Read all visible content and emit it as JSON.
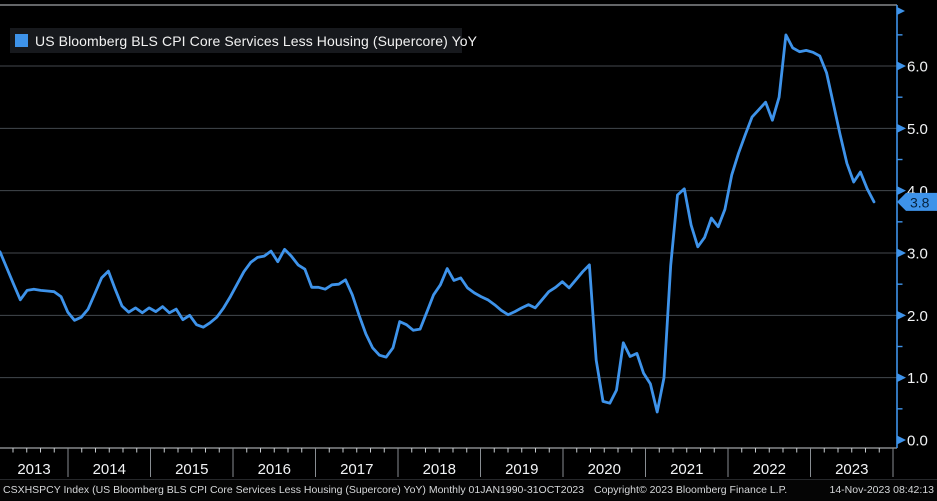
{
  "colors": {
    "background": "#000000",
    "line": "#3e93ea",
    "axis": "#3e93ea",
    "grid": "#43484e",
    "frame": "#c9cdd1",
    "separator": "#888d92",
    "tick_label": "#f2f4f6",
    "tag_bg": "#3e93ea",
    "tag_text": "#06233f",
    "legend_bg": "#17191d",
    "legend_text": "#f2f2f2",
    "footer_text": "#d6d8da"
  },
  "legend": {
    "swatch_color": "#3e93ea",
    "label": "US Bloomberg BLS CPI Core Services Less Housing (Supercore) YoY"
  },
  "y_axis": {
    "tick_labels": [
      "6.0",
      "5.0",
      "4.0",
      "3.0",
      "2.0",
      "1.0",
      "0.0"
    ],
    "minor_tick_values": [
      0.5,
      1.5,
      2.5,
      3.5,
      4.5,
      5.5,
      6.5
    ],
    "last_value_tag": "3.8"
  },
  "x_axis": {
    "year_labels": [
      "2013",
      "2014",
      "2015",
      "2016",
      "2017",
      "2018",
      "2019",
      "2020",
      "2021",
      "2022",
      "2023"
    ]
  },
  "footer": {
    "left": "CSXHSPCY Index (US Bloomberg BLS CPI Core Services Less Housing (Supercore) YoY)  Monthly 01JAN1990-31OCT2023",
    "center": "Copyright© 2023 Bloomberg Finance L.P.",
    "right": "14-Nov-2023 08:42:13"
  },
  "chart_data": {
    "type": "line",
    "title": "US Bloomberg BLS CPI Core Services Less Housing (Supercore) YoY",
    "legend_entries": [
      "US Bloomberg BLS CPI Core Services Less Housing (Supercore) YoY"
    ],
    "frequency": "monthly",
    "first_point": "2013-01",
    "last_point": "2023-10",
    "categories": [
      "2013",
      "2014",
      "2015",
      "2016",
      "2017",
      "2018",
      "2019",
      "2020",
      "2021",
      "2022",
      "2023"
    ],
    "ylim": [
      0,
      6.6
    ],
    "yticks": [
      0,
      1,
      2,
      3,
      4,
      5,
      6
    ],
    "grid": "horizontal",
    "legend_position": "top-left",
    "axis_side": "right",
    "last_value": 3.8,
    "series": [
      {
        "name": "US Bloomberg BLS CPI Core Services Less Housing (Supercore) YoY",
        "color": "#3e93ea",
        "values": [
          3.02,
          2.76,
          2.5,
          2.25,
          2.4,
          2.42,
          2.4,
          2.39,
          2.38,
          2.3,
          2.05,
          1.92,
          1.97,
          2.1,
          2.35,
          2.6,
          2.71,
          2.42,
          2.15,
          2.05,
          2.12,
          2.04,
          2.12,
          2.06,
          2.14,
          2.04,
          2.1,
          1.93,
          2.0,
          1.85,
          1.81,
          1.88,
          1.97,
          2.12,
          2.3,
          2.5,
          2.7,
          2.85,
          2.93,
          2.95,
          3.03,
          2.86,
          3.06,
          2.95,
          2.81,
          2.74,
          2.45,
          2.45,
          2.42,
          2.49,
          2.5,
          2.57,
          2.33,
          2.0,
          1.7,
          1.48,
          1.36,
          1.33,
          1.48,
          1.9,
          1.85,
          1.76,
          1.78,
          2.05,
          2.33,
          2.49,
          2.75,
          2.56,
          2.6,
          2.44,
          2.36,
          2.3,
          2.25,
          2.17,
          2.08,
          2.01,
          2.06,
          2.12,
          2.17,
          2.12,
          2.25,
          2.38,
          2.45,
          2.54,
          2.44,
          2.57,
          2.7,
          2.81,
          1.28,
          0.62,
          0.59,
          0.8,
          1.56,
          1.34,
          1.39,
          1.07,
          0.9,
          0.45,
          1.0,
          2.8,
          3.93,
          4.03,
          3.45,
          3.1,
          3.25,
          3.56,
          3.42,
          3.7,
          4.25,
          4.6,
          4.9,
          5.18,
          5.3,
          5.42,
          5.13,
          5.5,
          6.5,
          6.29,
          6.23,
          6.25,
          6.22,
          6.16,
          5.89,
          5.4,
          4.9,
          4.44,
          4.14,
          4.3,
          4.03,
          3.82
        ]
      }
    ]
  }
}
